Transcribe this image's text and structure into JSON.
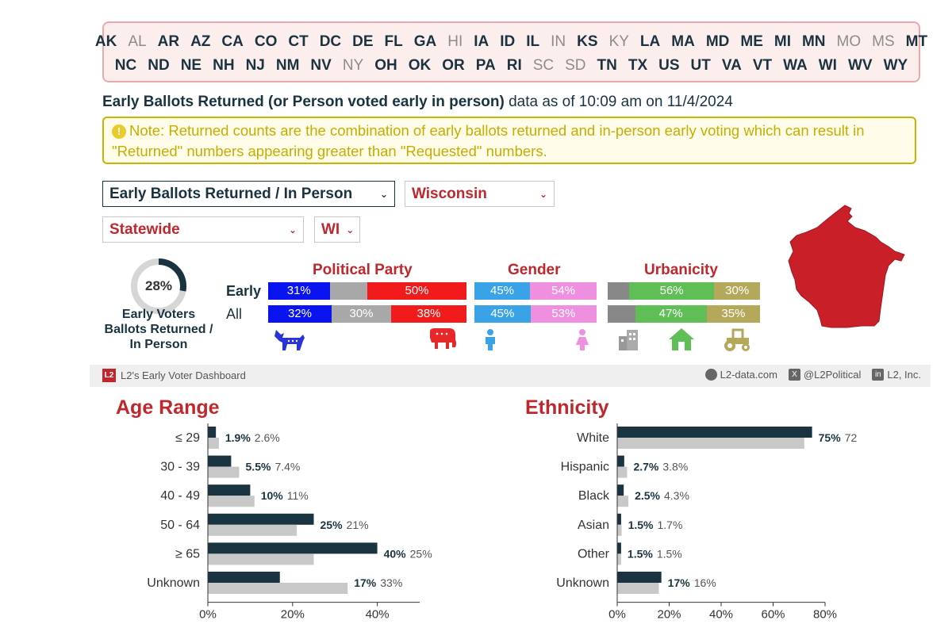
{
  "states": {
    "row1": [
      {
        "code": "AK",
        "active": true
      },
      {
        "code": "AL",
        "active": false
      },
      {
        "code": "AR",
        "active": true
      },
      {
        "code": "AZ",
        "active": true
      },
      {
        "code": "CA",
        "active": true
      },
      {
        "code": "CO",
        "active": true
      },
      {
        "code": "CT",
        "active": true
      },
      {
        "code": "DC",
        "active": true
      },
      {
        "code": "DE",
        "active": true
      },
      {
        "code": "FL",
        "active": true
      },
      {
        "code": "GA",
        "active": true
      },
      {
        "code": "HI",
        "active": false
      },
      {
        "code": "IA",
        "active": true
      },
      {
        "code": "ID",
        "active": true
      },
      {
        "code": "IL",
        "active": true
      },
      {
        "code": "IN",
        "active": false
      },
      {
        "code": "KS",
        "active": true
      },
      {
        "code": "KY",
        "active": false
      },
      {
        "code": "LA",
        "active": true
      },
      {
        "code": "MA",
        "active": true
      },
      {
        "code": "MD",
        "active": true
      },
      {
        "code": "ME",
        "active": true
      },
      {
        "code": "MI",
        "active": true
      },
      {
        "code": "MN",
        "active": true
      },
      {
        "code": "MO",
        "active": false
      },
      {
        "code": "MS",
        "active": false
      },
      {
        "code": "MT",
        "active": true
      }
    ],
    "row2": [
      {
        "code": "NC",
        "active": true
      },
      {
        "code": "ND",
        "active": true
      },
      {
        "code": "NE",
        "active": true
      },
      {
        "code": "NH",
        "active": true
      },
      {
        "code": "NJ",
        "active": true
      },
      {
        "code": "NM",
        "active": true
      },
      {
        "code": "NV",
        "active": true
      },
      {
        "code": "NY",
        "active": false
      },
      {
        "code": "OH",
        "active": true
      },
      {
        "code": "OK",
        "active": true
      },
      {
        "code": "OR",
        "active": true
      },
      {
        "code": "PA",
        "active": true
      },
      {
        "code": "RI",
        "active": true
      },
      {
        "code": "SC",
        "active": false
      },
      {
        "code": "SD",
        "active": false
      },
      {
        "code": "TN",
        "active": true
      },
      {
        "code": "TX",
        "active": true
      },
      {
        "code": "US",
        "active": true
      },
      {
        "code": "UT",
        "active": true
      },
      {
        "code": "VA",
        "active": true
      },
      {
        "code": "VT",
        "active": true
      },
      {
        "code": "WA",
        "active": true
      },
      {
        "code": "WI",
        "active": true
      },
      {
        "code": "WV",
        "active": true
      },
      {
        "code": "WY",
        "active": true
      }
    ]
  },
  "heading": {
    "bold": "Early Ballots Returned (or Person voted early in person)",
    "rest": " data as of 10:09 am on 11/4/2024"
  },
  "note": {
    "icon": "!",
    "text": "Note: Returned counts are the combination of early ballots returned and in-person early voting which can result in \"Returned\" numbers appearing greater than \"Requested\" numbers."
  },
  "selects": {
    "metric": "Early Ballots Returned / In Person",
    "state": "Wisconsin",
    "region": "Statewide",
    "abbr": "WI"
  },
  "summary": {
    "percent": "28%",
    "percent_value": 28,
    "label": "Early Voters Ballots Returned / In Person"
  },
  "groups": {
    "party": "Political Party",
    "gender": "Gender",
    "urbanicity": "Urbanicity"
  },
  "rows": {
    "early_label": "Early",
    "all_label": "All",
    "early": {
      "party": [
        {
          "v": 31,
          "t": "31%"
        },
        {
          "v": 19,
          "t": ""
        },
        {
          "v": 50,
          "t": "50%"
        }
      ],
      "gender": [
        {
          "v": 45,
          "t": "45%"
        },
        {
          "v": 54,
          "t": "54%"
        }
      ],
      "urban": [
        {
          "v": 14,
          "t": ""
        },
        {
          "v": 56,
          "t": "56%"
        },
        {
          "v": 30,
          "t": "30%"
        }
      ]
    },
    "all": {
      "party": [
        {
          "v": 32,
          "t": "32%"
        },
        {
          "v": 30,
          "t": "30%"
        },
        {
          "v": 38,
          "t": "38%"
        }
      ],
      "gender": [
        {
          "v": 45,
          "t": "45%"
        },
        {
          "v": 53,
          "t": "53%"
        }
      ],
      "urban": [
        {
          "v": 18,
          "t": ""
        },
        {
          "v": 47,
          "t": "47%"
        },
        {
          "v": 35,
          "t": "35%"
        }
      ]
    }
  },
  "colors": {
    "dem": "#0a14f0",
    "other": "#a8a8a8",
    "rep": "#f21b1b",
    "male": "#3aa3e8",
    "female": "#ef8fe0",
    "urban": "#888888",
    "suburban": "#5fbf56",
    "rural": "#b4a85a",
    "early_bar": "#1a3340",
    "all_bar": "#c8c8c8"
  },
  "footer": {
    "brand_logo": "L2",
    "brand": "L2's Early Voter Dashboard",
    "site": "L2-data.com",
    "x": "@L2Political",
    "li": "L2, Inc.",
    "x_icon": "X",
    "li_icon": "in"
  },
  "chart_data": [
    {
      "type": "bar",
      "title": "Age Range",
      "orientation": "horizontal",
      "categories": [
        "≤ 29",
        "30 - 39",
        "40 - 49",
        "50 - 64",
        "≥ 65",
        "Unknown"
      ],
      "series": [
        {
          "name": "Early",
          "values": [
            1.9,
            5.5,
            10,
            25,
            40,
            17
          ],
          "labels": [
            "1.9%",
            "5.5%",
            "10%",
            "25%",
            "40%",
            "17%"
          ]
        },
        {
          "name": "All",
          "values": [
            2.6,
            7.4,
            11,
            21,
            25,
            33
          ],
          "labels": [
            "2.6%",
            "7.4%",
            "11%",
            "21%",
            "25%",
            "33%"
          ]
        }
      ],
      "xlim": [
        0,
        50
      ],
      "ticks": [
        {
          "v": 0,
          "t": "0%"
        },
        {
          "v": 20,
          "t": "20%"
        },
        {
          "v": 40,
          "t": "40%"
        }
      ]
    },
    {
      "type": "bar",
      "title": "Ethnicity",
      "orientation": "horizontal",
      "categories": [
        "White",
        "Hispanic",
        "Black",
        "Asian",
        "Other",
        "Unknown"
      ],
      "series": [
        {
          "name": "Early",
          "values": [
            75,
            2.7,
            2.5,
            1.5,
            1.5,
            17
          ],
          "labels": [
            "75%",
            "2.7%",
            "2.5%",
            "1.5%",
            "1.5%",
            "17%"
          ]
        },
        {
          "name": "All",
          "values": [
            72,
            3.8,
            4.3,
            1.7,
            1.5,
            16
          ],
          "labels": [
            "72%",
            "3.8%",
            "4.3%",
            "1.7%",
            "1.5%",
            "16%"
          ]
        }
      ],
      "xlim": [
        0,
        80
      ],
      "ticks": [
        {
          "v": 0,
          "t": "0%"
        },
        {
          "v": 20,
          "t": "20%"
        },
        {
          "v": 40,
          "t": "40%"
        },
        {
          "v": 60,
          "t": "60%"
        },
        {
          "v": 80,
          "t": "80%"
        }
      ]
    }
  ]
}
